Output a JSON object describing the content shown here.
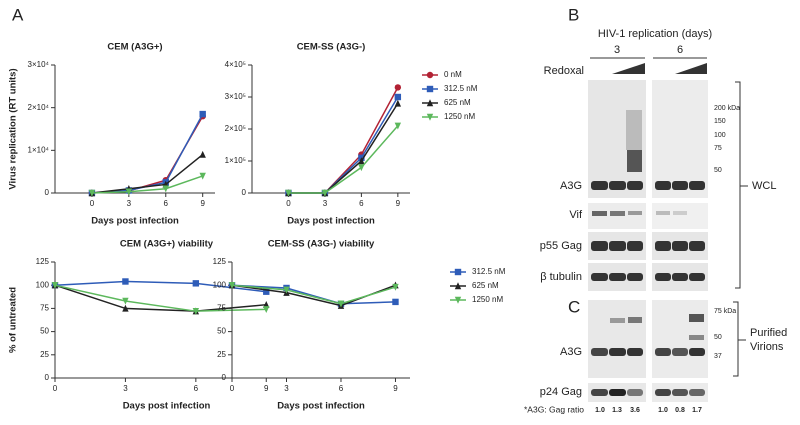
{
  "panel_labels": [
    "A",
    "B",
    "C"
  ],
  "chart_data": [
    {
      "type": "line",
      "title": "CEM (A3G+)",
      "x_label": "Days post infection",
      "y_label": "Virus replication (RT units)",
      "x": [
        0,
        3,
        6,
        9
      ],
      "xlim": [
        -3,
        10
      ],
      "xticks": [
        0,
        3,
        6,
        9
      ],
      "ylim": [
        0,
        30000
      ],
      "yticks": [
        0,
        {
          "value": 10000,
          "label": "1×10⁴"
        },
        {
          "value": 20000,
          "label": "2×10⁴"
        },
        {
          "value": 30000,
          "label": "3×10⁴"
        }
      ],
      "series": [
        {
          "color": "#b22234",
          "marker": "circle",
          "values": [
            0,
            500,
            3000,
            18000
          ]
        },
        {
          "color": "#2e5cb8",
          "marker": "square",
          "values": [
            0,
            600,
            2500,
            18500
          ]
        },
        {
          "color": "#222222",
          "marker": "triangle",
          "values": [
            0,
            1000,
            2000,
            9000
          ]
        },
        {
          "color": "#5cb85c",
          "marker": "triangle-down",
          "values": [
            0,
            300,
            1000,
            4000
          ]
        }
      ]
    },
    {
      "type": "line",
      "title": "CEM-SS (A3G-)",
      "x_label": "Days post infection",
      "legend": "right",
      "x": [
        0,
        3,
        6,
        9
      ],
      "xlim": [
        -3,
        10
      ],
      "xticks": [
        0,
        3,
        6,
        9
      ],
      "ylim": [
        0,
        400000
      ],
      "yticks": [
        0,
        {
          "value": 100000,
          "label": "1×10⁵"
        },
        {
          "value": 200000,
          "label": "2×10⁵"
        },
        {
          "value": 300000,
          "label": "3×10⁵"
        },
        {
          "value": 400000,
          "label": "4×10⁵"
        }
      ],
      "series": [
        {
          "name": "0 nM",
          "color": "#b22234",
          "marker": "circle",
          "values": [
            0,
            0,
            120000,
            330000
          ]
        },
        {
          "name": "312.5 nM",
          "color": "#2e5cb8",
          "marker": "square",
          "values": [
            0,
            0,
            110000,
            300000
          ]
        },
        {
          "name": "625 nM",
          "color": "#222222",
          "marker": "triangle",
          "values": [
            0,
            0,
            100000,
            280000
          ]
        },
        {
          "name": "1250 nM",
          "color": "#5cb85c",
          "marker": "triangle-down",
          "values": [
            0,
            0,
            80000,
            210000
          ]
        }
      ]
    },
    {
      "type": "line",
      "title": "CEM (A3G+) viability",
      "x_label": "Days post infection",
      "y_label": "% of untreated",
      "x": [
        0,
        3,
        6,
        9
      ],
      "xlim": [
        0,
        9.5
      ],
      "xticks": [
        0,
        3,
        6,
        9
      ],
      "ylim": [
        0,
        125
      ],
      "yticks": [
        0,
        25,
        50,
        75,
        100,
        125
      ],
      "series": [
        {
          "color": "#2e5cb8",
          "marker": "square",
          "values": [
            100,
            104,
            102,
            93
          ]
        },
        {
          "color": "#222222",
          "marker": "triangle",
          "values": [
            100,
            75,
            72,
            79
          ]
        },
        {
          "color": "#5cb85c",
          "marker": "triangle-down",
          "values": [
            100,
            83,
            72,
            74
          ]
        }
      ]
    },
    {
      "type": "line",
      "title": "CEM-SS (A3G-) viability",
      "x_label": "Days post infection",
      "legend": "right",
      "x": [
        0,
        3,
        6,
        9
      ],
      "xlim": [
        0,
        9.8
      ],
      "xticks": [
        0,
        3,
        6,
        9
      ],
      "ylim": [
        0,
        125
      ],
      "yticks": [
        0,
        25,
        50,
        75,
        100,
        125
      ],
      "series": [
        {
          "name": "312.5 nM",
          "color": "#2e5cb8",
          "marker": "square",
          "values": [
            100,
            97,
            80,
            82
          ]
        },
        {
          "name": "625 nM",
          "color": "#222222",
          "marker": "triangle",
          "values": [
            100,
            92,
            78,
            100
          ]
        },
        {
          "name": "1250 nM",
          "color": "#5cb85c",
          "marker": "triangle-down",
          "values": [
            100,
            95,
            80,
            98
          ]
        }
      ]
    }
  ],
  "blot": {
    "header": "HIV-1 replication (days)",
    "days": [
      "3",
      "6"
    ],
    "treatment": "Redoxal",
    "wcl_rows": [
      "A3G",
      "Vif",
      "p55 Gag",
      "β tubulin"
    ],
    "wcl_markers": [
      "200 kDa",
      "150",
      "100",
      "75",
      "50"
    ],
    "wcl_group": "WCL",
    "virion_rows": [
      "A3G",
      "p24 Gag"
    ],
    "virion_markers": [
      "75 kDa",
      "50",
      "37"
    ],
    "virion_group": [
      "Purified",
      "Virions"
    ],
    "ratio_label": "*A3G: Gag ratio",
    "ratios": [
      "1.0",
      "1.3",
      "3.6",
      "1.0",
      "0.8",
      "1.7"
    ]
  }
}
